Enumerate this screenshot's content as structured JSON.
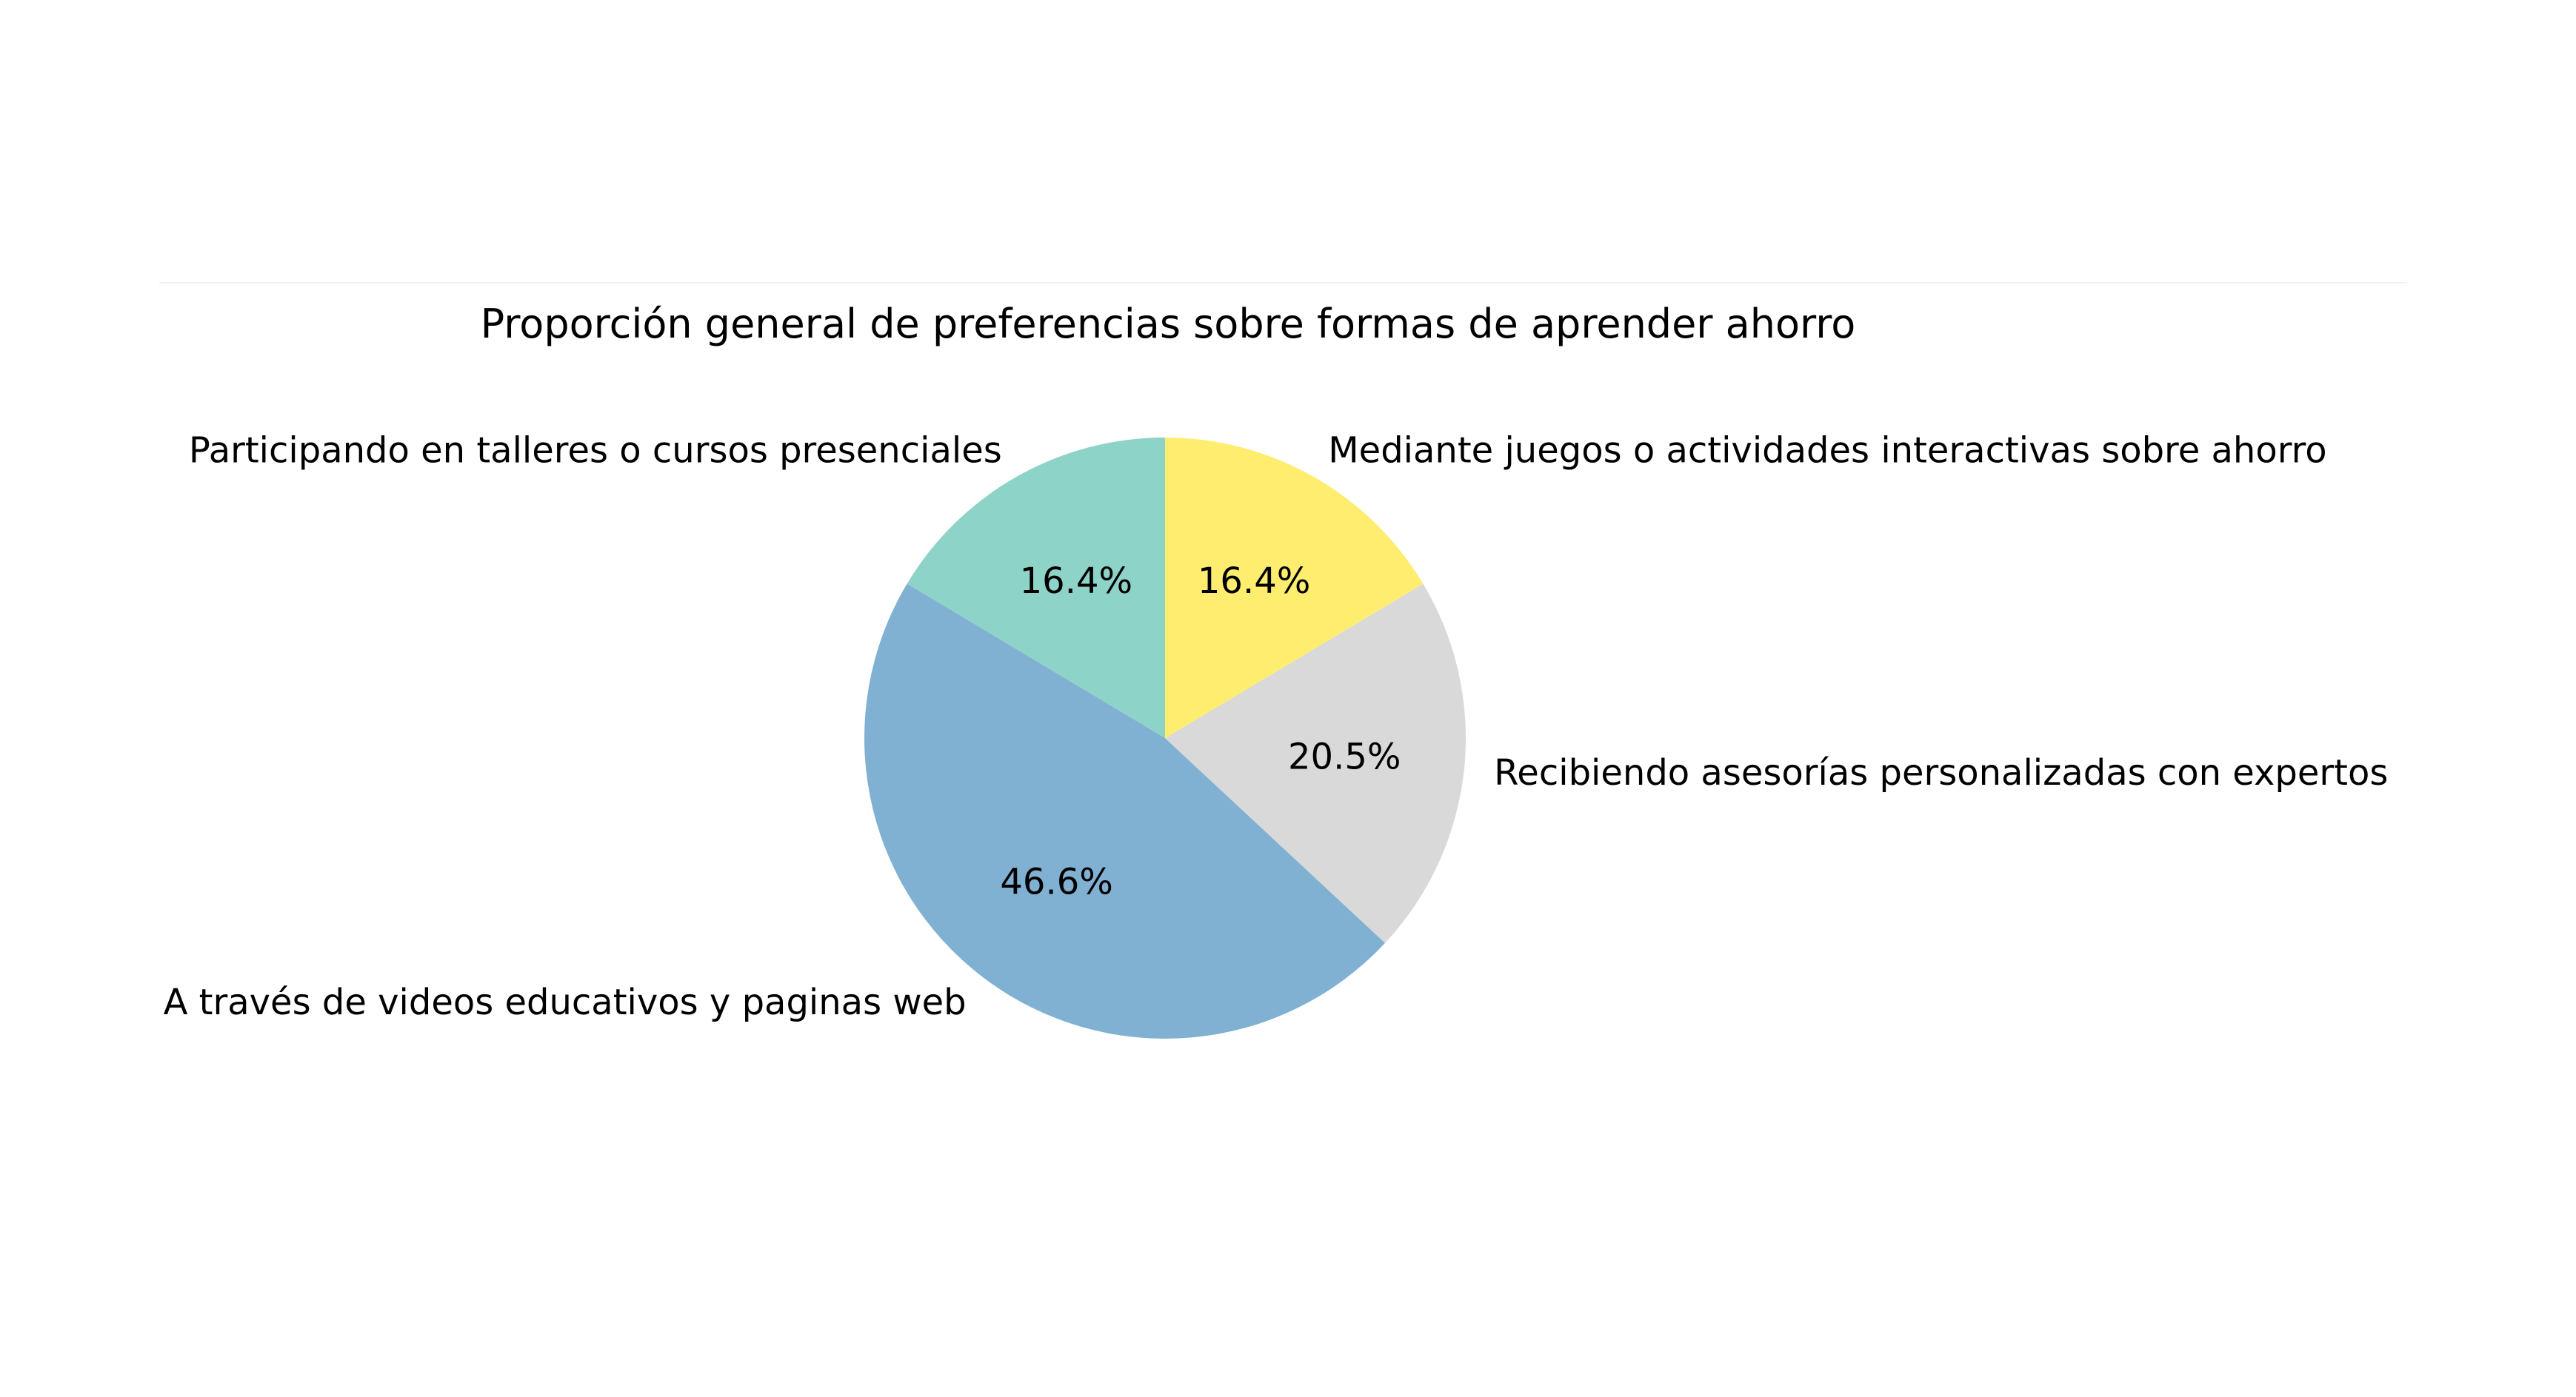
{
  "chart_data": {
    "type": "pie",
    "title": "Proporción general de preferencias sobre formas de aprender ahorro",
    "start_angle_deg": 90,
    "direction": "counterclockwise",
    "slices": [
      {
        "label": "Participando en talleres o cursos presenciales",
        "value": 16.4,
        "pct_label": "16.4%",
        "color": "#8dd3c7"
      },
      {
        "label": "A través de videos educativos y paginas web",
        "value": 46.6,
        "pct_label": "46.6%",
        "color": "#80b1d3"
      },
      {
        "label": "Recibiendo asesorías personalizadas con expertos",
        "value": 20.5,
        "pct_label": "20.5%",
        "color": "#d9d9d9"
      },
      {
        "label": "Mediante juegos o actividades interactivas sobre ahorro",
        "value": 16.4,
        "pct_label": "16.4%",
        "color": "#ffed6f"
      }
    ]
  }
}
